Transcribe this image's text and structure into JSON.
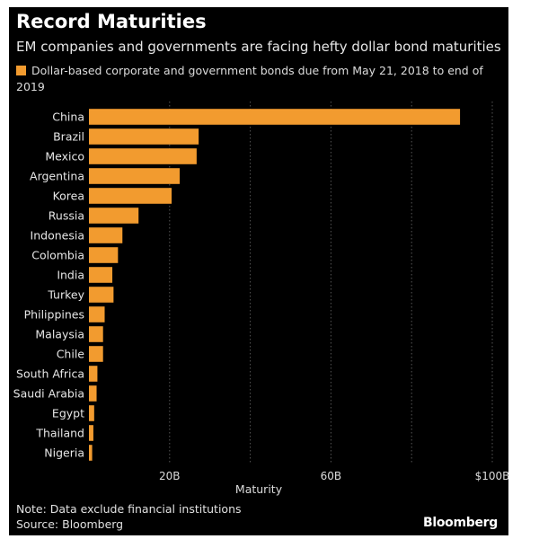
{
  "title": "Record Maturities",
  "subtitle": "EM companies and governments are facing hefty dollar bond maturities",
  "note": "Note: Data exclude financial institutions",
  "source": "Source: Bloomberg",
  "logo": "Bloomberg",
  "colors": {
    "background": "#000000",
    "bar": "#f29b2f",
    "text": "#ffffff",
    "grid": "#555555"
  },
  "chart_data": {
    "type": "bar",
    "orientation": "horizontal",
    "categories": [
      "China",
      "Brazil",
      "Mexico",
      "Argentina",
      "Korea",
      "Russia",
      "Indonesia",
      "Colombia",
      "India",
      "Turkey",
      "Philippines",
      "Malaysia",
      "Chile",
      "South Africa",
      "Saudi Arabia",
      "Egypt",
      "Thailand",
      "Nigeria"
    ],
    "series": [
      {
        "name": "Dollar-based corporate and government bonds due from May 21, 2018 to end of 2019",
        "values": [
          92,
          27.2,
          26.7,
          22.5,
          20.5,
          12.3,
          8.3,
          7.2,
          5.8,
          6.1,
          3.9,
          3.5,
          3.5,
          2.1,
          1.9,
          1.3,
          1.1,
          0.8
        ]
      }
    ],
    "xlim": [
      0,
      100
    ],
    "xticks": [
      20,
      60,
      100
    ],
    "xtick_labels": [
      "20B",
      "60B",
      "$100B"
    ],
    "xlabel": "Maturity",
    "ylabel": "",
    "grid": true,
    "legend_position": "top-left"
  }
}
